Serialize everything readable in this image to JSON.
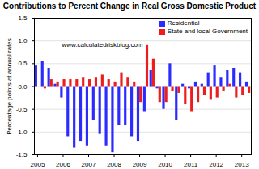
{
  "chart_data": {
    "type": "bar",
    "title": "Contributions to Percent Change in Real Gross Domestic Product",
    "y_label": "Percentage points at annual rates",
    "annotation": "www.calculatedriskblog.com",
    "categories": [
      "2005",
      null,
      null,
      null,
      "2006",
      null,
      null,
      null,
      "2007",
      null,
      null,
      null,
      "2008",
      null,
      null,
      null,
      "2009",
      null,
      null,
      null,
      "2010",
      null,
      null,
      null,
      "2011",
      null,
      null,
      null,
      "2012",
      null,
      null,
      null,
      "2013",
      null
    ],
    "series": [
      {
        "name": "Residential",
        "color": "#2b2bff",
        "values": [
          0.45,
          0.55,
          0.4,
          0.05,
          -0.25,
          -1.1,
          -1.35,
          -1.2,
          -1.3,
          -0.75,
          -1.05,
          -1.3,
          -1.45,
          -0.85,
          -0.85,
          -1.1,
          -1.2,
          -0.55,
          0.35,
          -0.05,
          -0.5,
          0.5,
          -0.75,
          0.05,
          -0.05,
          0.1,
          0.05,
          0.3,
          0.45,
          0.2,
          0.35,
          0.4,
          0.3,
          0.1
        ]
      },
      {
        "name": "State and local Government",
        "color": "#ee1c1c",
        "values": [
          0.0,
          -0.05,
          0.15,
          0.1,
          0.15,
          0.15,
          0.15,
          0.2,
          0.15,
          0.2,
          0.25,
          0.15,
          0.1,
          0.3,
          0.2,
          0.1,
          -0.35,
          0.9,
          0.6,
          -0.35,
          -0.35,
          -0.1,
          -0.15,
          -0.4,
          -0.55,
          -0.35,
          -0.2,
          -0.3,
          -0.25,
          -0.1,
          0.05,
          -0.25,
          -0.2,
          -0.15
        ]
      }
    ],
    "ylim": [
      -1.5,
      1.5
    ],
    "yticks": [
      {
        "value": -1.5,
        "label": "-1.5"
      },
      {
        "value": -1,
        "label": "-1.0"
      },
      {
        "value": -0.5,
        "label": "-0.5"
      },
      {
        "value": 0,
        "label": "0.0"
      },
      {
        "value": 0.5,
        "label": "0.5"
      },
      {
        "value": 1,
        "label": "1.0"
      },
      {
        "value": 1.5,
        "label": "1.5"
      }
    ],
    "grid": true,
    "legend": "top-right"
  }
}
